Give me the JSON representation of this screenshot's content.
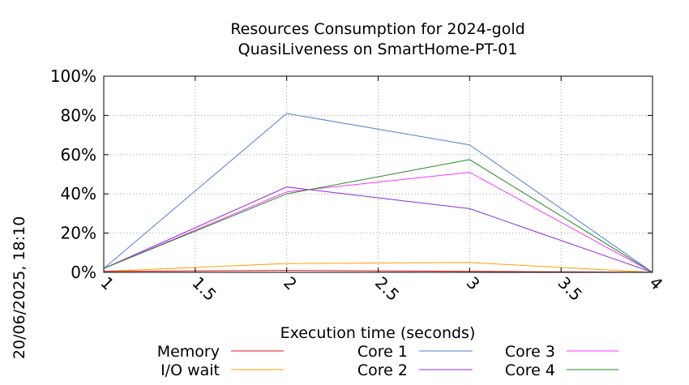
{
  "chart_data": {
    "type": "line",
    "title_lines": [
      "Resources Consumption for 2024-gold",
      "QuasiLiveness on SmartHome-PT-01"
    ],
    "xlabel": "Execution time (seconds)",
    "ylabel": "",
    "side_label": "20/06/2025, 18:10",
    "xlim": [
      1,
      4
    ],
    "ylim": [
      0,
      100
    ],
    "x_ticks": [
      "1",
      "1.5",
      "2",
      "2.5",
      "3",
      "3.5",
      "4"
    ],
    "x_tick_values": [
      1,
      1.5,
      2,
      2.5,
      3,
      3.5,
      4
    ],
    "y_ticks": [
      "0%",
      "20%",
      "40%",
      "60%",
      "80%",
      "100%"
    ],
    "y_tick_values": [
      0,
      20,
      40,
      60,
      80,
      100
    ],
    "grid": true,
    "x": [
      1,
      2,
      3,
      4
    ],
    "series": [
      {
        "name": "Memory",
        "color": "#e41a1c",
        "values": [
          0.5,
          1,
          0.5,
          0
        ]
      },
      {
        "name": "I/O wait",
        "color": "#ff9f00",
        "values": [
          0.5,
          4.5,
          5,
          0
        ]
      },
      {
        "name": "Core 1",
        "color": "#4f7fd4",
        "values": [
          2,
          81,
          65,
          0
        ]
      },
      {
        "name": "Core 2",
        "color": "#8a2be2",
        "values": [
          2,
          43.5,
          32.5,
          0
        ]
      },
      {
        "name": "Core 3",
        "color": "#ff33ff",
        "values": [
          2,
          41,
          51,
          0
        ]
      },
      {
        "name": "Core 4",
        "color": "#228b22",
        "values": [
          2,
          40,
          57.5,
          0
        ]
      }
    ]
  }
}
